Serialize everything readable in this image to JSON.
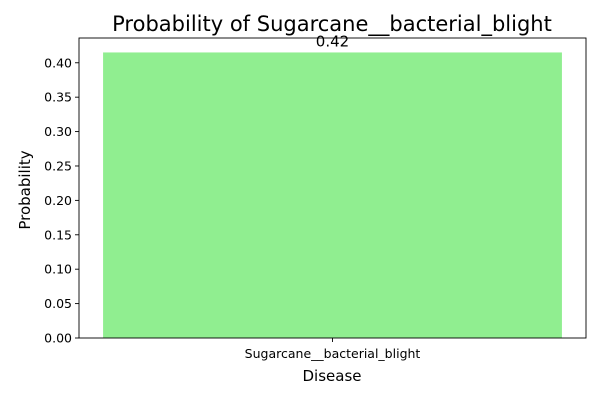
{
  "chart_data": {
    "type": "bar",
    "title": "Probability of Sugarcane__bacterial_blight",
    "xlabel": "Disease",
    "ylabel": "Probability",
    "categories": [
      "Sugarcane__bacterial_blight"
    ],
    "values": [
      0.415
    ],
    "data_labels": [
      "0.42"
    ],
    "ylim": [
      0,
      0.436
    ],
    "yticks": [
      0.0,
      0.05,
      0.1,
      0.15,
      0.2,
      0.25,
      0.3,
      0.35,
      0.4
    ],
    "ytick_labels": [
      "0.00",
      "0.05",
      "0.10",
      "0.15",
      "0.20",
      "0.25",
      "0.30",
      "0.35",
      "0.40"
    ],
    "bar_color": "#90ee90",
    "grid": false,
    "legend": "none"
  }
}
